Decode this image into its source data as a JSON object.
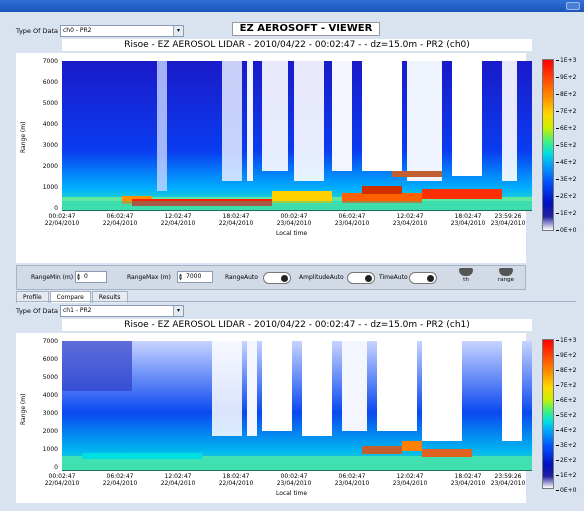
{
  "app": {
    "title": "EZ AEROSOFT - VIEWER"
  },
  "colors": {
    "background": "#d9e3f0",
    "titlebar": "#1b54b8"
  },
  "top": {
    "type_label": "Type Of Data",
    "type_value": "ch0 - PR2",
    "plot_title": "Risoe - EZ AEROSOL LIDAR - 2010/04/22 - 00:02:47 - - dz=15.0m - PR2 (ch0)"
  },
  "bottom": {
    "type_label": "Type Of Data",
    "type_value": "ch1 - PR2",
    "plot_title": "Risoe - EZ AEROSOL LIDAR - 2010/04/22 - 00:02:47 - - dz=15.0m - PR2 (ch1)"
  },
  "axes": {
    "ylabel": "Range (m)",
    "xlabel": "Local time",
    "yticks": [
      "7000",
      "6000",
      "5000",
      "4000",
      "3000",
      "2000",
      "1000",
      "0"
    ],
    "xticks": [
      {
        "t": "00:02:47",
        "d": "22/04/2010"
      },
      {
        "t": "06:02:47",
        "d": "22/04/2010"
      },
      {
        "t": "12:02:47",
        "d": "22/04/2010"
      },
      {
        "t": "18:02:47",
        "d": "22/04/2010"
      },
      {
        "t": "00:02:47",
        "d": "23/04/2010"
      },
      {
        "t": "06:02:47",
        "d": "23/04/2010"
      },
      {
        "t": "12:02:47",
        "d": "23/04/2010"
      },
      {
        "t": "18:02:47",
        "d": "23/04/2010"
      },
      {
        "t": "23:59:26",
        "d": "23/04/2010"
      }
    ],
    "colorbar": [
      "1E+3",
      "9E+2",
      "8E+2",
      "7E+2",
      "6E+2",
      "5E+2",
      "4E+2",
      "3E+2",
      "2E+2",
      "1E+2",
      "0E+0"
    ]
  },
  "controls": {
    "range_min_label": "RangeMin (m)",
    "range_min_value": "0",
    "range_max_label": "RangeMax (m)",
    "range_max_value": "7000",
    "range_auto_label": "RangeAuto",
    "amplitude_auto_label": "AmplitudeAuto",
    "time_auto_label": "TimeAuto",
    "eraser1_label": "th",
    "eraser2_label": "range"
  },
  "tabs": [
    "Profile",
    "Compare",
    "Results"
  ]
}
